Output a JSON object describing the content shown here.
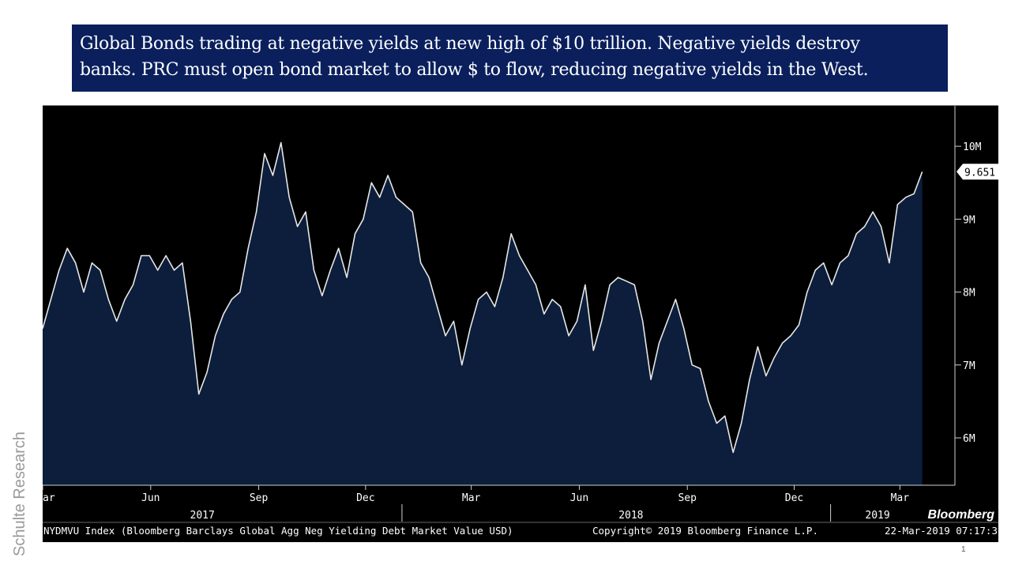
{
  "slide": {
    "title_line1": "Global Bonds trading at negative yields at new high of $10 trillion. Negative yields destroy",
    "title_line2": "banks. PRC must open bond market to allow $ to flow, reducing negative yields in the West.",
    "side_label": "Schulte Research",
    "page_number": "1"
  },
  "footer": {
    "index_desc": "NYDMVU Index (Bloomberg Barclays Global Agg Neg Yielding Debt Market Value USD)",
    "copyright": "Copyright© 2019 Bloomberg Finance L.P.",
    "timestamp": "22-Mar-2019 07:17:3",
    "brand": "Bloomberg"
  },
  "colors": {
    "background": "#000000",
    "area_fill": "#0c1e3c",
    "line": "#e6e6e6",
    "axis": "#cfcfcf",
    "text": "#ffffff",
    "title_bg": "#0a1f5c"
  },
  "chart_data": {
    "type": "area",
    "title": "",
    "xlabel": "",
    "ylabel": "",
    "ylim": [
      5.35,
      10.5
    ],
    "y_ticks": [
      6,
      7,
      8,
      9,
      10
    ],
    "y_tick_labels": [
      "6M",
      "7M",
      "8M",
      "9M",
      "10M"
    ],
    "last_value_label": "9.651",
    "x_range": [
      "2017-03-01",
      "2019-03-25"
    ],
    "month_ticks": [
      {
        "label": "ar",
        "date": "2017-03-01"
      },
      {
        "label": "Jun",
        "date": "2017-06-01"
      },
      {
        "label": "Sep",
        "date": "2017-09-01"
      },
      {
        "label": "Dec",
        "date": "2017-12-01"
      },
      {
        "label": "Mar",
        "date": "2018-03-01"
      },
      {
        "label": "Jun",
        "date": "2018-06-01"
      },
      {
        "label": "Sep",
        "date": "2018-09-01"
      },
      {
        "label": "Dec",
        "date": "2018-12-01"
      },
      {
        "label": "Mar",
        "date": "2019-03-01"
      }
    ],
    "year_labels": [
      {
        "label": "2017",
        "date": "2017-07-15"
      },
      {
        "label": "2018",
        "date": "2018-07-15"
      },
      {
        "label": "2019",
        "date": "2019-02-10"
      }
    ],
    "year_dividers": [
      "2018-01-01",
      "2019-01-01"
    ],
    "series": [
      {
        "name": "NYDMVU Index",
        "points": [
          [
            "2017-03-01",
            7.5
          ],
          [
            "2017-03-08",
            7.9
          ],
          [
            "2017-03-15",
            8.3
          ],
          [
            "2017-03-22",
            8.6
          ],
          [
            "2017-03-29",
            8.4
          ],
          [
            "2017-04-05",
            8.0
          ],
          [
            "2017-04-12",
            8.4
          ],
          [
            "2017-04-19",
            8.3
          ],
          [
            "2017-04-26",
            7.9
          ],
          [
            "2017-05-03",
            7.6
          ],
          [
            "2017-05-10",
            7.9
          ],
          [
            "2017-05-17",
            8.1
          ],
          [
            "2017-05-24",
            8.5
          ],
          [
            "2017-05-31",
            8.5
          ],
          [
            "2017-06-07",
            8.3
          ],
          [
            "2017-06-14",
            8.5
          ],
          [
            "2017-06-21",
            8.3
          ],
          [
            "2017-06-28",
            8.4
          ],
          [
            "2017-07-05",
            7.6
          ],
          [
            "2017-07-12",
            6.6
          ],
          [
            "2017-07-19",
            6.9
          ],
          [
            "2017-07-26",
            7.4
          ],
          [
            "2017-08-02",
            7.7
          ],
          [
            "2017-08-09",
            7.9
          ],
          [
            "2017-08-16",
            8.0
          ],
          [
            "2017-08-23",
            8.6
          ],
          [
            "2017-08-30",
            9.1
          ],
          [
            "2017-09-06",
            9.9
          ],
          [
            "2017-09-13",
            9.6
          ],
          [
            "2017-09-20",
            10.05
          ],
          [
            "2017-09-27",
            9.3
          ],
          [
            "2017-10-04",
            8.9
          ],
          [
            "2017-10-11",
            9.1
          ],
          [
            "2017-10-18",
            8.3
          ],
          [
            "2017-10-25",
            7.95
          ],
          [
            "2017-11-01",
            8.3
          ],
          [
            "2017-11-08",
            8.6
          ],
          [
            "2017-11-15",
            8.2
          ],
          [
            "2017-11-22",
            8.8
          ],
          [
            "2017-11-29",
            9.0
          ],
          [
            "2017-12-06",
            9.5
          ],
          [
            "2017-12-13",
            9.3
          ],
          [
            "2017-12-20",
            9.6
          ],
          [
            "2017-12-27",
            9.3
          ],
          [
            "2018-01-03",
            9.2
          ],
          [
            "2018-01-10",
            9.1
          ],
          [
            "2018-01-17",
            8.4
          ],
          [
            "2018-01-24",
            8.2
          ],
          [
            "2018-01-31",
            7.8
          ],
          [
            "2018-02-07",
            7.4
          ],
          [
            "2018-02-14",
            7.6
          ],
          [
            "2018-02-21",
            7.0
          ],
          [
            "2018-02-28",
            7.5
          ],
          [
            "2018-03-07",
            7.9
          ],
          [
            "2018-03-14",
            8.0
          ],
          [
            "2018-03-21",
            7.8
          ],
          [
            "2018-03-28",
            8.2
          ],
          [
            "2018-04-04",
            8.8
          ],
          [
            "2018-04-11",
            8.5
          ],
          [
            "2018-04-18",
            8.3
          ],
          [
            "2018-04-25",
            8.1
          ],
          [
            "2018-05-02",
            7.7
          ],
          [
            "2018-05-09",
            7.9
          ],
          [
            "2018-05-16",
            7.8
          ],
          [
            "2018-05-23",
            7.4
          ],
          [
            "2018-05-30",
            7.6
          ],
          [
            "2018-06-06",
            8.1
          ],
          [
            "2018-06-13",
            7.2
          ],
          [
            "2018-06-20",
            7.6
          ],
          [
            "2018-06-27",
            8.1
          ],
          [
            "2018-07-04",
            8.2
          ],
          [
            "2018-07-11",
            8.15
          ],
          [
            "2018-07-18",
            8.1
          ],
          [
            "2018-07-25",
            7.6
          ],
          [
            "2018-08-01",
            6.8
          ],
          [
            "2018-08-08",
            7.3
          ],
          [
            "2018-08-15",
            7.6
          ],
          [
            "2018-08-22",
            7.9
          ],
          [
            "2018-08-29",
            7.5
          ],
          [
            "2018-09-05",
            7.0
          ],
          [
            "2018-09-12",
            6.95
          ],
          [
            "2018-09-19",
            6.5
          ],
          [
            "2018-09-26",
            6.2
          ],
          [
            "2018-10-03",
            6.3
          ],
          [
            "2018-10-10",
            5.8
          ],
          [
            "2018-10-17",
            6.2
          ],
          [
            "2018-10-24",
            6.8
          ],
          [
            "2018-10-31",
            7.25
          ],
          [
            "2018-11-07",
            6.85
          ],
          [
            "2018-11-14",
            7.1
          ],
          [
            "2018-11-21",
            7.3
          ],
          [
            "2018-11-28",
            7.4
          ],
          [
            "2018-12-05",
            7.55
          ],
          [
            "2018-12-12",
            8.0
          ],
          [
            "2018-12-19",
            8.3
          ],
          [
            "2018-12-26",
            8.4
          ],
          [
            "2019-01-02",
            8.1
          ],
          [
            "2019-01-09",
            8.4
          ],
          [
            "2019-01-16",
            8.5
          ],
          [
            "2019-01-23",
            8.8
          ],
          [
            "2019-01-30",
            8.9
          ],
          [
            "2019-02-06",
            9.1
          ],
          [
            "2019-02-13",
            8.9
          ],
          [
            "2019-02-20",
            8.4
          ],
          [
            "2019-02-27",
            9.2
          ],
          [
            "2019-03-06",
            9.3
          ],
          [
            "2019-03-13",
            9.35
          ],
          [
            "2019-03-20",
            9.651
          ]
        ]
      }
    ]
  }
}
